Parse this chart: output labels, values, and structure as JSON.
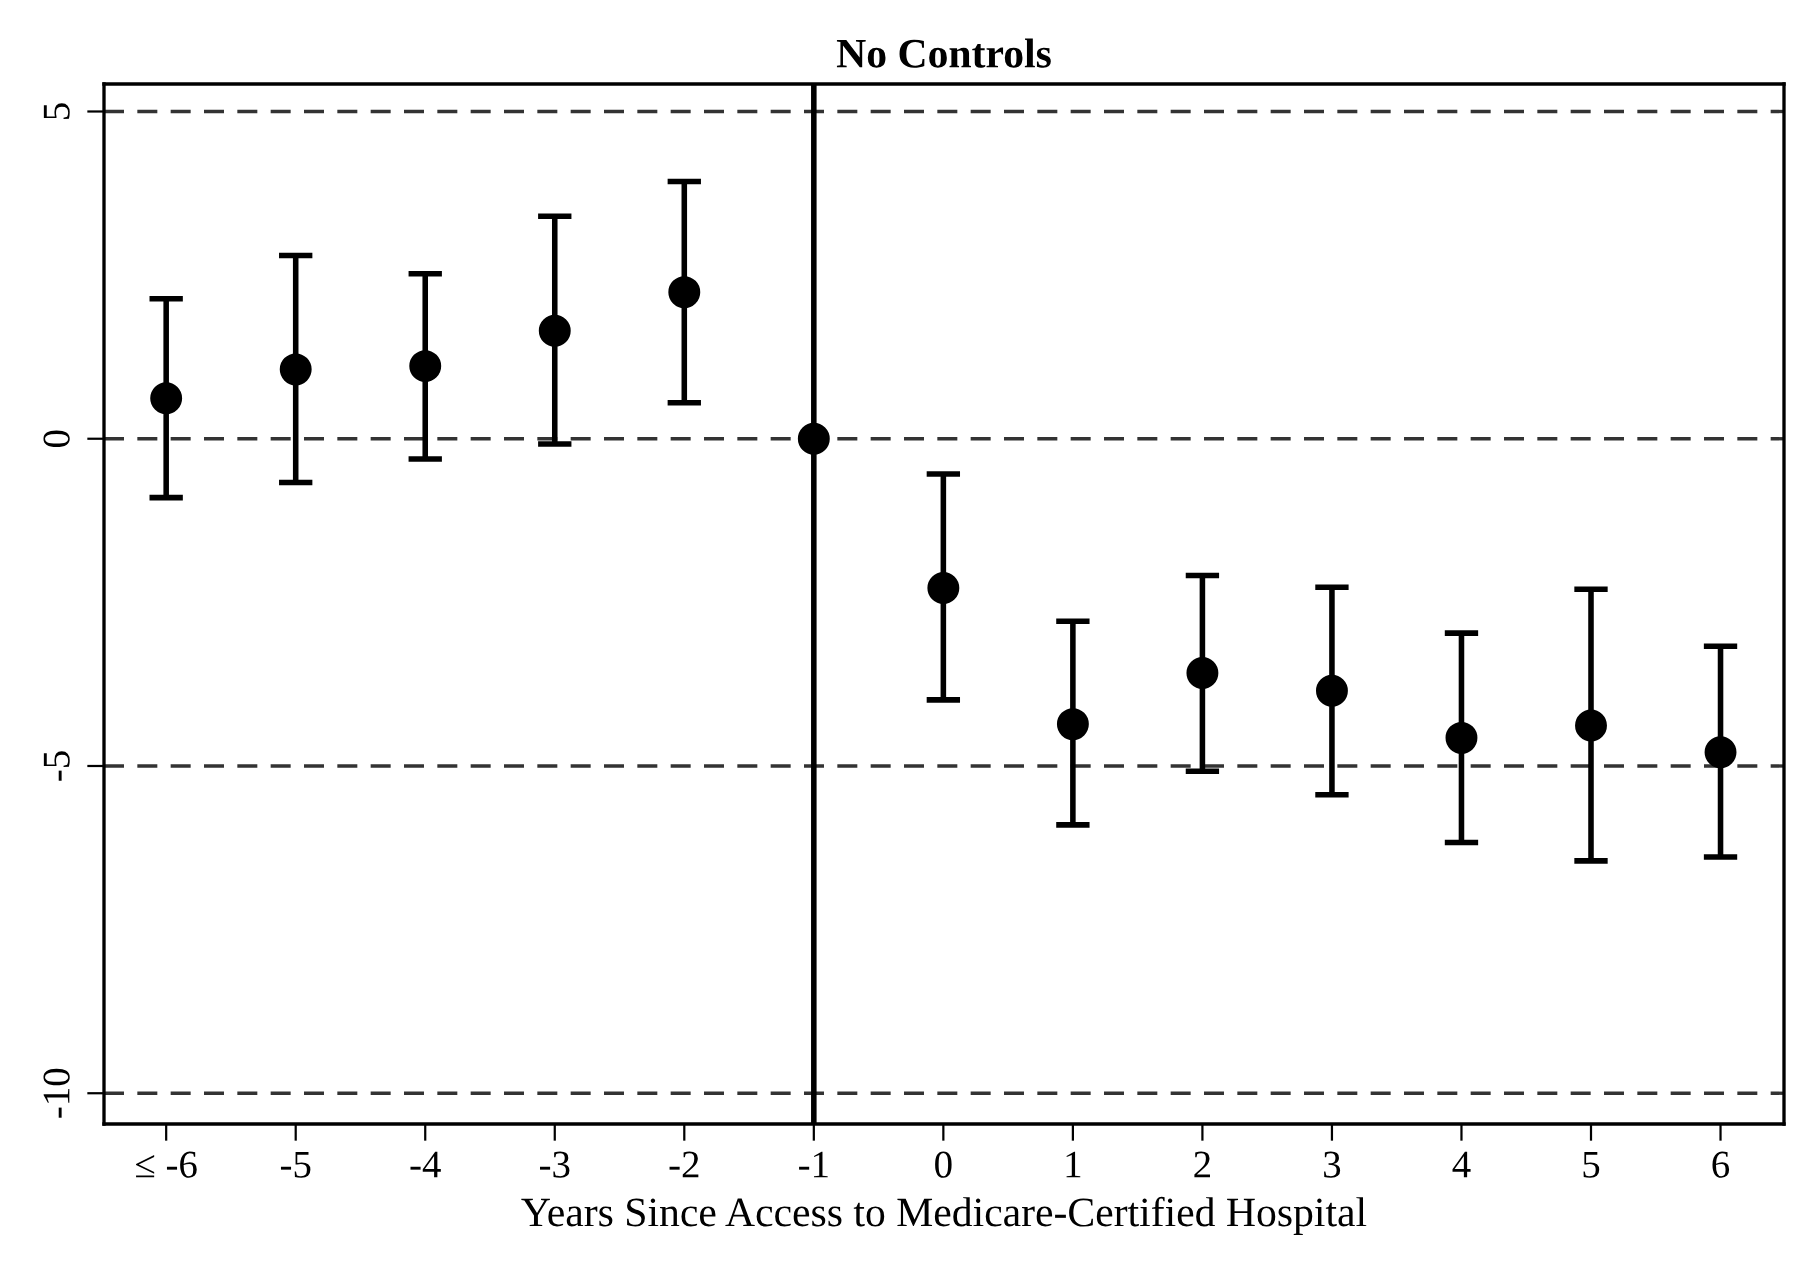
{
  "chart_data": {
    "type": "scatter",
    "title": "No Controls",
    "xlabel": "Years Since Access to Medicare-Certified Hospital",
    "categories": [
      "≤ -6",
      "-5",
      "-4",
      "-3",
      "-2",
      "-1",
      "0",
      "1",
      "2",
      "3",
      "4",
      "5",
      "6"
    ],
    "series": [
      {
        "color": "#000000",
        "values": [
          0.62,
          1.06,
          1.11,
          1.65,
          2.24,
          0,
          -2.28,
          -4.36,
          -3.58,
          -3.85,
          -4.57,
          -4.38,
          -4.79
        ],
        "errors": [
          [
            -0.9,
            2.14
          ],
          [
            -0.67,
            2.8
          ],
          [
            -0.31,
            2.52
          ],
          [
            -0.08,
            3.4
          ],
          [
            0.55,
            3.93
          ],
          null,
          [
            -3.99,
            -0.54
          ],
          [
            -5.9,
            -2.79
          ],
          [
            -5.08,
            -2.09
          ],
          [
            -5.44,
            -2.27
          ],
          [
            -6.17,
            -2.97
          ],
          [
            -6.45,
            -2.3
          ],
          [
            -6.39,
            -3.17
          ]
        ]
      }
    ],
    "ylim": [
      -10.47,
      5.42
    ],
    "yticks": [
      -10,
      -5,
      0,
      5
    ],
    "grid": "y",
    "line_style": "dashed",
    "marker": "circle",
    "legend": false,
    "ref_lines": [
      {
        "axis": "x",
        "value": "-1",
        "color": "#000000",
        "line_style": "solid"
      }
    ]
  }
}
